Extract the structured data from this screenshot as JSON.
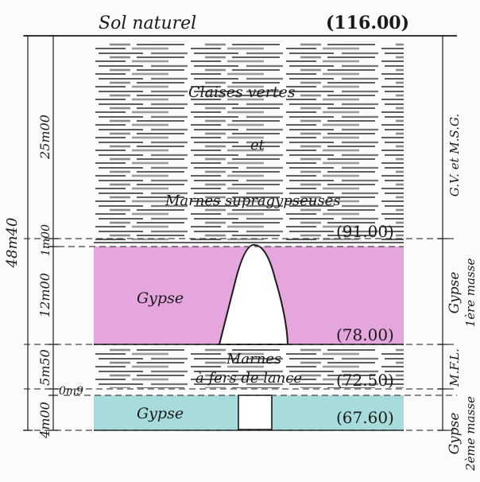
{
  "header": {
    "ground_label": "Sol naturel",
    "ground_elevation": "(116.00)"
  },
  "layers": [
    {
      "id": "gv-msg",
      "name_lines": [
        "Claises vertes",
        "et",
        "Marnes supragypseuses"
      ],
      "thickness_main": "25m00",
      "thickness_extra": "1m00",
      "right_label": "G.V. et M.S.G.",
      "bottom_elevation": "(91.00)",
      "fill": "hatch-lines"
    },
    {
      "id": "gypse-1",
      "name_lines": [
        "Gypse"
      ],
      "thickness_main": "12m00",
      "right_label_lines": [
        "Gypse",
        "1ère masse"
      ],
      "bottom_elevation": "(78.00)",
      "fill": "#e4a6dc"
    },
    {
      "id": "mfl",
      "name_lines": [
        "Marnes",
        "à fers de lance"
      ],
      "thickness_main": "5m50",
      "right_label": "M.F.L.",
      "bottom_elevation": "(72.50)",
      "fill": "hatch-lines"
    },
    {
      "id": "gypse-2",
      "name_lines": [
        "Gypse"
      ],
      "thickness_main": "4m00",
      "thickness_extra": "0m9",
      "right_label_lines": [
        "Gypse",
        "2ème masse"
      ],
      "bottom_elevation": "(67.60)",
      "fill": "#a8dcdc"
    }
  ],
  "total_thickness": "48m40",
  "colors": {
    "ink": "#1a1a1a",
    "gypse_1": "#e4a6dc",
    "gypse_2": "#a8dcdc",
    "hatch": "#2a2a2a",
    "dash": "#444444"
  }
}
